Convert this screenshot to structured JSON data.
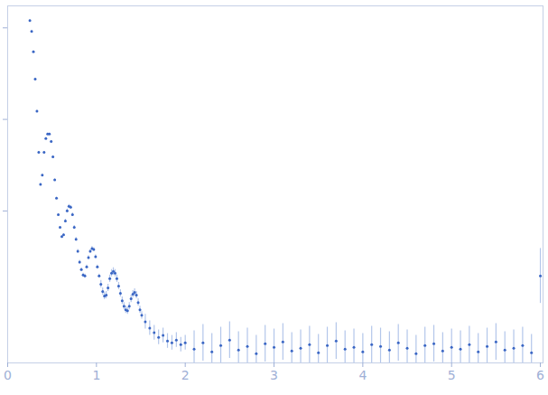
{
  "chart_data": {
    "type": "scatter",
    "color": "#3a66c4",
    "marker": "circle",
    "tick_labels": "x",
    "xlim": [
      0,
      6.03
    ],
    "xticks": [
      0,
      1,
      2,
      3,
      4,
      5,
      6
    ],
    "ylim": [
      0,
      3.9
    ],
    "yticks": [
      1.66,
      2.66,
      3.66
    ],
    "x": [
      0.25,
      0.27,
      0.29,
      0.31,
      0.33,
      0.35,
      0.37,
      0.39,
      0.41,
      0.43,
      0.45,
      0.47,
      0.49,
      0.51,
      0.53,
      0.55,
      0.57,
      0.59,
      0.61,
      0.63,
      0.65,
      0.67,
      0.69,
      0.71,
      0.73,
      0.75,
      0.77,
      0.79,
      0.81,
      0.83,
      0.85,
      0.87,
      0.89,
      0.91,
      0.93,
      0.95,
      0.97,
      0.99,
      1.01,
      1.03,
      1.05,
      1.07,
      1.09,
      1.11,
      1.13,
      1.15,
      1.17,
      1.19,
      1.21,
      1.23,
      1.25,
      1.27,
      1.29,
      1.31,
      1.33,
      1.35,
      1.37,
      1.39,
      1.41,
      1.43,
      1.45,
      1.47,
      1.49,
      1.51,
      1.55,
      1.6,
      1.65,
      1.7,
      1.75,
      1.8,
      1.85,
      1.9,
      1.95,
      2.0,
      2.1,
      2.2,
      2.3,
      2.4,
      2.5,
      2.6,
      2.7,
      2.8,
      2.9,
      3.0,
      3.1,
      3.2,
      3.3,
      3.4,
      3.5,
      3.6,
      3.7,
      3.8,
      3.9,
      4.0,
      4.1,
      4.2,
      4.3,
      4.4,
      4.5,
      4.6,
      4.7,
      4.8,
      4.9,
      5.0,
      5.1,
      5.2,
      5.3,
      5.4,
      5.5,
      5.6,
      5.7,
      5.8,
      5.9,
      6.0
    ],
    "values": [
      3.74,
      3.62,
      3.4,
      3.1,
      2.75,
      2.3,
      1.95,
      2.05,
      2.3,
      2.45,
      2.5,
      2.5,
      2.42,
      2.25,
      2.0,
      1.8,
      1.62,
      1.48,
      1.38,
      1.4,
      1.55,
      1.66,
      1.71,
      1.7,
      1.62,
      1.48,
      1.35,
      1.22,
      1.1,
      1.02,
      0.96,
      0.95,
      1.05,
      1.15,
      1.22,
      1.25,
      1.24,
      1.16,
      1.05,
      0.95,
      0.86,
      0.78,
      0.73,
      0.74,
      0.82,
      0.92,
      0.98,
      1.0,
      0.98,
      0.92,
      0.84,
      0.76,
      0.68,
      0.62,
      0.58,
      0.57,
      0.62,
      0.7,
      0.75,
      0.77,
      0.74,
      0.66,
      0.58,
      0.52,
      0.45,
      0.38,
      0.33,
      0.28,
      0.3,
      0.24,
      0.22,
      0.25,
      0.2,
      0.22,
      0.15,
      0.22,
      0.12,
      0.19,
      0.25,
      0.14,
      0.18,
      0.1,
      0.21,
      0.17,
      0.23,
      0.13,
      0.16,
      0.2,
      0.11,
      0.19,
      0.24,
      0.15,
      0.17,
      0.12,
      0.2,
      0.18,
      0.14,
      0.22,
      0.16,
      0.1,
      0.19,
      0.21,
      0.13,
      0.17,
      0.15,
      0.2,
      0.12,
      0.18,
      0.23,
      0.14,
      0.16,
      0.19,
      0.11,
      0.95
    ],
    "errors": [
      0.01,
      0.01,
      0.01,
      0.01,
      0.01,
      0.01,
      0.01,
      0.01,
      0.01,
      0.01,
      0.01,
      0.01,
      0.01,
      0.01,
      0.01,
      0.01,
      0.01,
      0.01,
      0.01,
      0.01,
      0.02,
      0.02,
      0.02,
      0.02,
      0.02,
      0.02,
      0.02,
      0.02,
      0.02,
      0.02,
      0.02,
      0.02,
      0.02,
      0.02,
      0.02,
      0.02,
      0.02,
      0.02,
      0.02,
      0.02,
      0.04,
      0.04,
      0.04,
      0.04,
      0.04,
      0.04,
      0.04,
      0.04,
      0.04,
      0.04,
      0.04,
      0.04,
      0.04,
      0.04,
      0.04,
      0.04,
      0.04,
      0.04,
      0.04,
      0.04,
      0.04,
      0.04,
      0.04,
      0.04,
      0.08,
      0.08,
      0.08,
      0.08,
      0.08,
      0.08,
      0.08,
      0.08,
      0.08,
      0.08,
      0.2,
      0.2,
      0.2,
      0.2,
      0.2,
      0.2,
      0.2,
      0.2,
      0.2,
      0.2,
      0.2,
      0.2,
      0.2,
      0.2,
      0.2,
      0.2,
      0.2,
      0.2,
      0.2,
      0.2,
      0.2,
      0.2,
      0.2,
      0.2,
      0.2,
      0.2,
      0.2,
      0.2,
      0.2,
      0.2,
      0.2,
      0.2,
      0.2,
      0.2,
      0.2,
      0.2,
      0.2,
      0.2,
      0.2,
      0.3
    ],
    "error_color": "#b3c6ea"
  }
}
